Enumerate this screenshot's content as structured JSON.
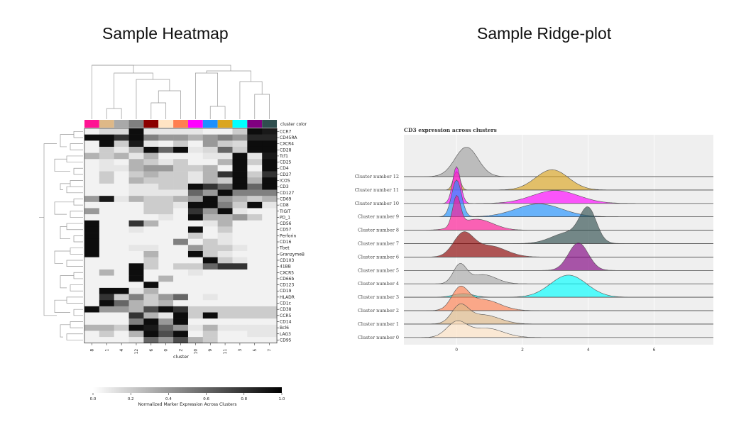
{
  "titles": {
    "left": "Sample Heatmap",
    "right": "Sample Ridge-plot"
  },
  "chart_data": [
    {
      "type": "heatmap",
      "columns": [
        "8",
        "1",
        "4",
        "12",
        "6",
        "0",
        "2",
        "10",
        "9",
        "11",
        "3",
        "5",
        "7"
      ],
      "column_colors": [
        "#ff1493",
        "#deb887",
        "#a9a9a9",
        "#808080",
        "#8b0000",
        "#ffe4c4",
        "#ff7f50",
        "#ff00ff",
        "#1e90ff",
        "#daa520",
        "#00ffff",
        "#800080",
        "#2f4f4f"
      ],
      "cluster_color_label": "cluster color",
      "xlabel": "cluster",
      "rows": [
        "CCR7",
        "CD45RA",
        "CXCR4",
        "CD28",
        "Tcf1",
        "CD25",
        "CD4",
        "CD27",
        "ICOS",
        "CD3",
        "CD127",
        "CD69",
        "CD8",
        "TIGIT",
        "PD_1",
        "CD56",
        "CD57",
        "Perforin",
        "CD16",
        "Tbet",
        "GranzymeB",
        "CD103",
        "41BB",
        "CXCR5",
        "CD66b",
        "CD123",
        "CD19",
        "HLADR",
        "CD1c",
        "CD38",
        "CCR5",
        "CD14",
        "Bcl6",
        "LAG3",
        "CD95"
      ],
      "values": [
        [
          0.05,
          0.15,
          0.15,
          0.95,
          0.1,
          0.1,
          0.1,
          0.1,
          0.05,
          0.05,
          0.2,
          0.95,
          0.9
        ],
        [
          0.95,
          0.95,
          0.8,
          0.95,
          0.5,
          0.4,
          0.4,
          0.3,
          0.4,
          0.5,
          0.4,
          0.85,
          0.85
        ],
        [
          0.05,
          0.95,
          0.2,
          0.9,
          0.1,
          0.05,
          0.2,
          0.05,
          0.4,
          0.2,
          0.15,
          0.95,
          0.95
        ],
        [
          0.05,
          0.2,
          0.1,
          0.3,
          0.95,
          0.6,
          0.95,
          0.1,
          0.15,
          0.6,
          0.2,
          0.95,
          0.95
        ],
        [
          0.3,
          0.2,
          0.3,
          0.1,
          0.3,
          0.05,
          0.05,
          0.05,
          0.1,
          0.1,
          0.95,
          0.1,
          0.9
        ],
        [
          0.05,
          0.1,
          0.05,
          0.3,
          0.2,
          0.1,
          0.2,
          0.05,
          0.05,
          0.3,
          0.95,
          0.2,
          0.95
        ],
        [
          0.05,
          0.1,
          0.1,
          0.3,
          0.4,
          0.4,
          0.2,
          0.2,
          0.3,
          0.05,
          0.95,
          0.05,
          0.95
        ],
        [
          0.05,
          0.2,
          0.05,
          0.2,
          0.3,
          0.2,
          0.2,
          0.1,
          0.3,
          0.8,
          0.95,
          0.2,
          0.8
        ],
        [
          0.05,
          0.2,
          0.05,
          0.3,
          0.2,
          0.2,
          0.2,
          0.1,
          0.3,
          0.2,
          0.95,
          0.3,
          0.95
        ],
        [
          0.05,
          0.05,
          0.05,
          0.1,
          0.1,
          0.2,
          0.2,
          0.95,
          0.8,
          0.6,
          0.95,
          0.6,
          0.95
        ],
        [
          0.05,
          0.05,
          0.05,
          0.1,
          0.1,
          0.1,
          0.1,
          0.6,
          0.4,
          0.95,
          0.5,
          0.5,
          0.5
        ],
        [
          0.4,
          0.9,
          0.1,
          0.3,
          0.2,
          0.2,
          0.3,
          0.4,
          0.95,
          0.4,
          0.3,
          0.2,
          0.3
        ],
        [
          0.05,
          0.05,
          0.05,
          0.05,
          0.2,
          0.2,
          0.1,
          0.95,
          0.95,
          0.5,
          0.2,
          0.95,
          0.1
        ],
        [
          0.4,
          0.05,
          0.05,
          0.05,
          0.2,
          0.2,
          0.05,
          0.8,
          0.4,
          0.95,
          0.1,
          0.05,
          0.05
        ],
        [
          0.05,
          0.05,
          0.05,
          0.05,
          0.05,
          0.1,
          0.05,
          0.95,
          0.3,
          0.3,
          0.4,
          0.2,
          0.05
        ],
        [
          0.95,
          0.05,
          0.05,
          0.8,
          0.3,
          0.05,
          0.05,
          0.05,
          0.1,
          0.3,
          0.05,
          0.05,
          0.05
        ],
        [
          0.95,
          0.05,
          0.05,
          0.1,
          0.05,
          0.05,
          0.05,
          0.95,
          0.05,
          0.2,
          0.05,
          0.05,
          0.05
        ],
        [
          0.95,
          0.05,
          0.05,
          0.05,
          0.05,
          0.05,
          0.05,
          0.2,
          0.05,
          0.1,
          0.05,
          0.05,
          0.05
        ],
        [
          0.95,
          0.05,
          0.05,
          0.05,
          0.05,
          0.05,
          0.5,
          0.05,
          0.2,
          0.1,
          0.05,
          0.05,
          0.05
        ],
        [
          0.95,
          0.05,
          0.05,
          0.1,
          0.1,
          0.05,
          0.05,
          0.4,
          0.2,
          0.2,
          0.1,
          0.05,
          0.05
        ],
        [
          0.95,
          0.05,
          0.05,
          0.05,
          0.3,
          0.05,
          0.05,
          0.95,
          0.2,
          0.1,
          0.05,
          0.05,
          0.05
        ],
        [
          0.05,
          0.05,
          0.05,
          0.05,
          0.2,
          0.05,
          0.05,
          0.05,
          0.95,
          0.2,
          0.1,
          0.05,
          0.05
        ],
        [
          0.05,
          0.05,
          0.05,
          0.95,
          0.2,
          0.05,
          0.2,
          0.2,
          0.6,
          0.8,
          0.8,
          0.05,
          0.05
        ],
        [
          0.05,
          0.3,
          0.05,
          0.95,
          0.05,
          0.05,
          0.05,
          0.1,
          0.05,
          0.05,
          0.05,
          0.05,
          0.05
        ],
        [
          0.05,
          0.05,
          0.05,
          0.95,
          0.05,
          0.3,
          0.05,
          0.05,
          0.05,
          0.05,
          0.05,
          0.05,
          0.05
        ],
        [
          0.05,
          0.05,
          0.05,
          0.05,
          0.95,
          0.05,
          0.05,
          0.05,
          0.05,
          0.05,
          0.05,
          0.05,
          0.05
        ],
        [
          0.05,
          0.95,
          0.95,
          0.1,
          0.3,
          0.05,
          0.05,
          0.05,
          0.05,
          0.05,
          0.05,
          0.05,
          0.05
        ],
        [
          0.05,
          0.8,
          0.2,
          0.5,
          0.2,
          0.4,
          0.6,
          0.05,
          0.1,
          0.05,
          0.05,
          0.05,
          0.05
        ],
        [
          0.05,
          0.95,
          0.6,
          0.3,
          0.2,
          0.3,
          0.05,
          0.05,
          0.05,
          0.05,
          0.05,
          0.05,
          0.05
        ],
        [
          0.95,
          0.4,
          0.4,
          0.3,
          0.7,
          0.95,
          0.8,
          0.2,
          0.2,
          0.2,
          0.2,
          0.2,
          0.2
        ],
        [
          0.05,
          0.05,
          0.05,
          0.8,
          0.3,
          0.1,
          0.95,
          0.2,
          0.95,
          0.2,
          0.2,
          0.2,
          0.2
        ],
        [
          0.05,
          0.05,
          0.05,
          0.5,
          0.95,
          0.4,
          0.95,
          0.05,
          0.05,
          0.05,
          0.05,
          0.05,
          0.05
        ],
        [
          0.3,
          0.3,
          0.2,
          0.95,
          0.9,
          0.6,
          0.4,
          0.1,
          0.3,
          0.1,
          0.1,
          0.1,
          0.1
        ],
        [
          0.05,
          0.2,
          0.05,
          0.3,
          0.95,
          0.7,
          0.95,
          0.05,
          0.2,
          0.05,
          0.05,
          0.1,
          0.1
        ],
        [
          0.05,
          0.05,
          0.05,
          0.1,
          0.6,
          0.4,
          0.7,
          0.3,
          0.2,
          0.05,
          0.05,
          0.05,
          0.05
        ]
      ],
      "colorbar": {
        "label": "Normalized Marker Expression Across Clusters",
        "ticks": [
          "0.0",
          "0.2",
          "0.4",
          "0.6",
          "0.8",
          "1.0"
        ],
        "range": [
          0,
          1
        ]
      }
    },
    {
      "type": "area",
      "title": "CD3 expression across clusters",
      "x_ticks": [
        0,
        2,
        4,
        6
      ],
      "xlim": [
        -1.6,
        7.8
      ],
      "series": [
        {
          "name": "Cluster number 12",
          "color": "#a0a0a0",
          "peaks": [
            [
              0.3,
              0.8,
              0.35
            ]
          ]
        },
        {
          "name": "Cluster number 11",
          "color": "#daa520",
          "peaks": [
            [
              0.0,
              0.5,
              0.1
            ],
            [
              2.9,
              0.55,
              0.5
            ]
          ]
        },
        {
          "name": "Cluster number 10",
          "color": "#ff00ff",
          "peaks": [
            [
              0.0,
              1.0,
              0.12
            ],
            [
              3.0,
              0.35,
              0.7
            ]
          ]
        },
        {
          "name": "Cluster number 9",
          "color": "#1e90ff",
          "peaks": [
            [
              0.0,
              1.0,
              0.15
            ],
            [
              2.5,
              0.35,
              0.7
            ]
          ]
        },
        {
          "name": "Cluster number 8",
          "color": "#ff1493",
          "peaks": [
            [
              0.0,
              0.8,
              0.12
            ],
            [
              0.6,
              0.3,
              0.5
            ]
          ]
        },
        {
          "name": "Cluster number 7",
          "color": "#2f4f4f",
          "peaks": [
            [
              4.0,
              0.85,
              0.25
            ],
            [
              3.4,
              0.3,
              0.5
            ]
          ]
        },
        {
          "name": "Cluster number 6",
          "color": "#8b0000",
          "peaks": [
            [
              0.2,
              0.6,
              0.3
            ],
            [
              1.0,
              0.3,
              0.5
            ]
          ]
        },
        {
          "name": "Cluster number 5",
          "color": "#800080",
          "peaks": [
            [
              3.7,
              0.75,
              0.3
            ]
          ]
        },
        {
          "name": "Cluster number 4",
          "color": "#a9a9a9",
          "peaks": [
            [
              0.1,
              0.5,
              0.2
            ],
            [
              0.8,
              0.25,
              0.4
            ]
          ]
        },
        {
          "name": "Cluster number 3",
          "color": "#00ffff",
          "peaks": [
            [
              3.4,
              0.6,
              0.55
            ],
            [
              0.2,
              0.1,
              0.3
            ]
          ]
        },
        {
          "name": "Cluster number 2",
          "color": "#ff7f50",
          "peaks": [
            [
              0.1,
              0.55,
              0.25
            ],
            [
              0.8,
              0.3,
              0.5
            ]
          ]
        },
        {
          "name": "Cluster number 1",
          "color": "#deb887",
          "peaks": [
            [
              0.1,
              0.45,
              0.25
            ],
            [
              0.8,
              0.25,
              0.5
            ]
          ]
        },
        {
          "name": "Cluster number 0",
          "color": "#ffe4c4",
          "peaks": [
            [
              0.0,
              0.4,
              0.3
            ],
            [
              0.9,
              0.25,
              0.5
            ]
          ]
        }
      ]
    }
  ]
}
